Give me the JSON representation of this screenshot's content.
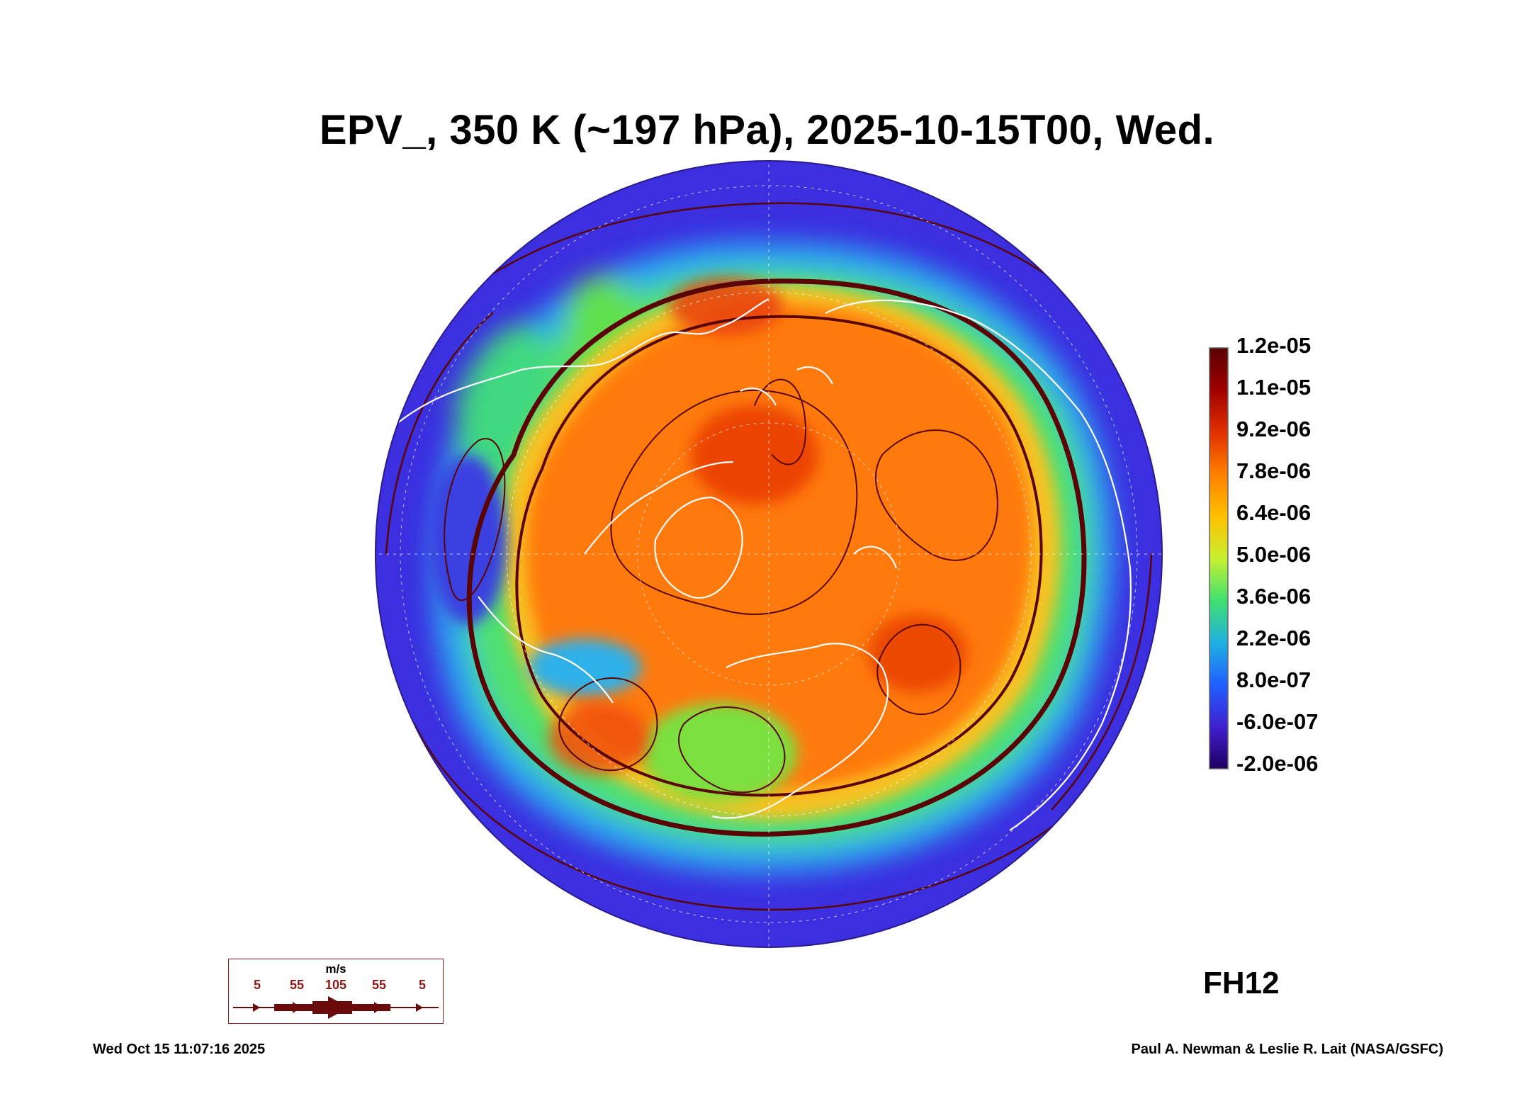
{
  "title": "EPV_, 350 K (~197 hPa), 2025-10-15T00, Wed.",
  "forecast_hour": "FH12",
  "timestamp": "Wed Oct 15 11:07:16 2025",
  "credits": "Paul A. Newman & Leslie R. Lait (NASA/GSFC)",
  "colorbar": {
    "labels": [
      "1.2e-05",
      "1.1e-05",
      "9.2e-06",
      "7.8e-06",
      "6.4e-06",
      "5.0e-06",
      "3.6e-06",
      "2.2e-06",
      "8.0e-07",
      "-6.0e-07",
      "-2.0e-06"
    ],
    "colors": [
      "#5a0000",
      "#a00000",
      "#e03000",
      "#ff8000",
      "#ffc000",
      "#c8f030",
      "#40e070",
      "#20b0e0",
      "#2060ff",
      "#4020d0",
      "#200060"
    ]
  },
  "wind_legend": {
    "unit": "m/s",
    "values": [
      "5",
      "55",
      "105",
      "55",
      "5"
    ]
  },
  "map": {
    "projection": "north-polar-orthographic",
    "field_colors": {
      "low": "#3a30e0",
      "mid_low": "#20a0f0",
      "mid": "#50e060",
      "mid_high": "#f0d020",
      "high": "#ff7a10",
      "peak": "#d82000"
    },
    "streamline_color": "#5a0505",
    "coastline_color": "#ffffff"
  }
}
